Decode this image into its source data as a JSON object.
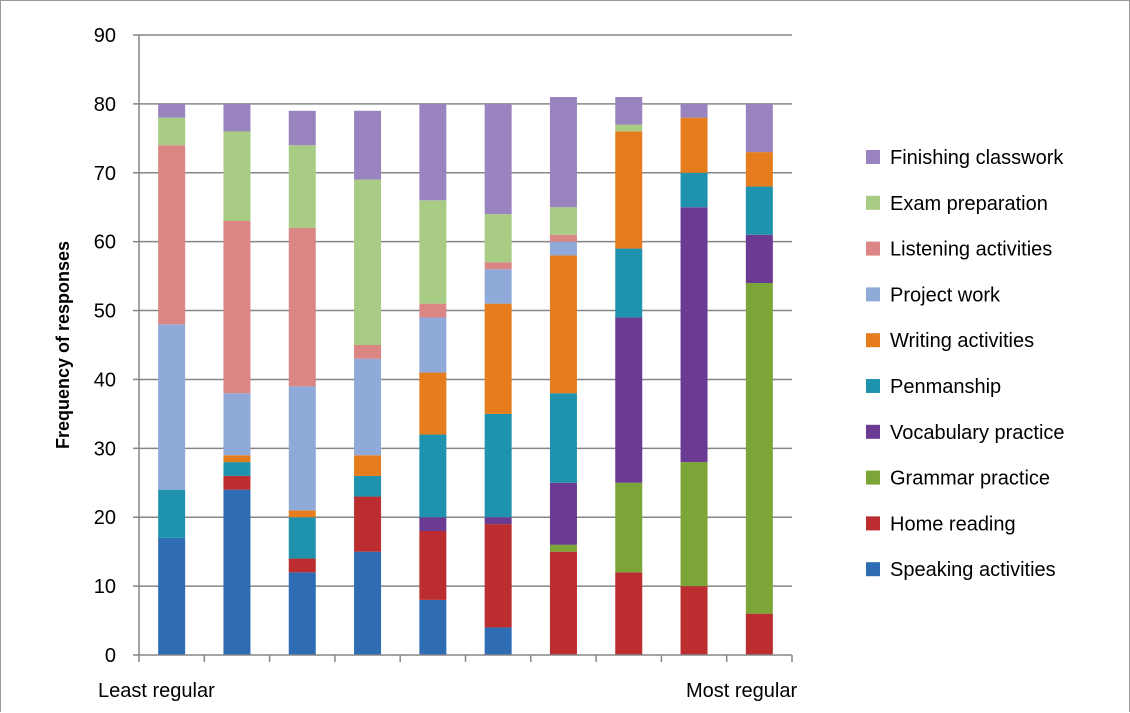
{
  "chart_data": {
    "type": "bar",
    "stacked": true,
    "ylabel": "Frequency of responses",
    "xlabel_left": "Least regular",
    "xlabel_right": "Most regular",
    "ylim": [
      0,
      90
    ],
    "yticks": [
      0,
      10,
      20,
      30,
      40,
      50,
      60,
      70,
      80,
      90
    ],
    "grid": true,
    "legend_position": "right",
    "categories": [
      "1",
      "2",
      "3",
      "4",
      "5",
      "6",
      "7",
      "8",
      "9",
      "10"
    ],
    "series": [
      {
        "name": "Speaking activities",
        "color": "#2e6db4",
        "values": [
          17,
          24,
          12,
          15,
          8,
          4,
          0,
          0,
          0,
          0
        ]
      },
      {
        "name": "Home reading",
        "color": "#bb2d2f",
        "values": [
          0,
          2,
          2,
          8,
          10,
          15,
          15,
          12,
          10,
          6
        ]
      },
      {
        "name": "Grammar practice",
        "color": "#7ba637",
        "values": [
          0,
          0,
          0,
          0,
          0,
          0,
          1,
          13,
          18,
          48
        ]
      },
      {
        "name": "Vocabulary practice",
        "color": "#6b3b93",
        "values": [
          0,
          0,
          0,
          0,
          2,
          1,
          9,
          24,
          37,
          7
        ]
      },
      {
        "name": "Penmanship",
        "color": "#1f93ad",
        "values": [
          7,
          2,
          6,
          3,
          12,
          15,
          13,
          10,
          5,
          7
        ]
      },
      {
        "name": "Writing activities",
        "color": "#e57d1e",
        "values": [
          0,
          1,
          1,
          3,
          9,
          16,
          20,
          17,
          8,
          5
        ]
      },
      {
        "name": "Project work",
        "color": "#8fa9d8",
        "values": [
          24,
          9,
          18,
          14,
          8,
          5,
          2,
          0,
          0,
          0
        ]
      },
      {
        "name": "Listening activities",
        "color": "#dc8585",
        "values": [
          26,
          25,
          23,
          2,
          2,
          1,
          1,
          0,
          0,
          0
        ]
      },
      {
        "name": "Exam preparation",
        "color": "#a9cc84",
        "values": [
          4,
          13,
          12,
          24,
          15,
          7,
          4,
          1,
          0,
          0
        ]
      },
      {
        "name": "Finishing classwork",
        "color": "#9a84bf",
        "values": [
          2,
          4,
          5,
          10,
          14,
          16,
          16,
          4,
          2,
          7
        ]
      }
    ]
  }
}
